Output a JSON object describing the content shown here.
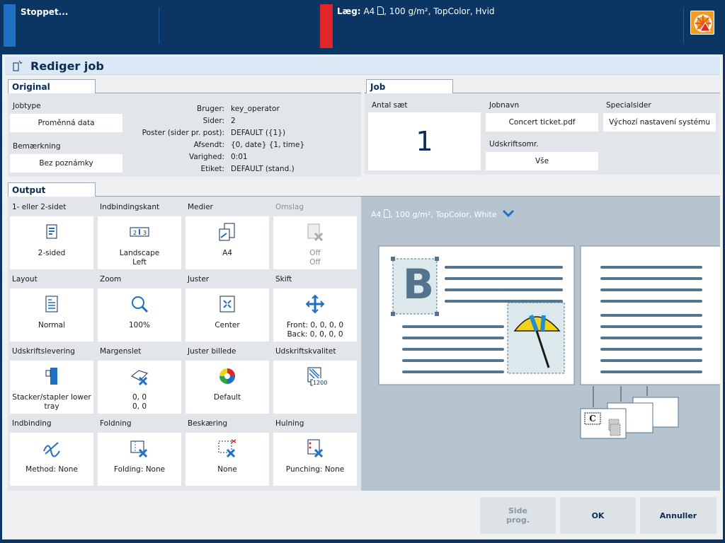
{
  "topbar": {
    "status": "Stoppet...",
    "load_label": "Læg:",
    "load_media": "A4",
    "load_desc": ", 100 g/m², TopColor, Hvid"
  },
  "dialog": {
    "title": "Rediger job",
    "original": {
      "tab": "Original",
      "jobtype_label": "Jobtype",
      "jobtype_value": "Proměnná data",
      "note_label": "Bemærkning",
      "note_value": "Bez poznámky",
      "details": [
        {
          "k": "Bruger:",
          "v": "key_operator"
        },
        {
          "k": "Sider:",
          "v": "2"
        },
        {
          "k": "Poster (sider pr. post):",
          "v": "DEFAULT ({1})"
        },
        {
          "k": "Afsendt:",
          "v": "{0, date} {1, time}"
        },
        {
          "k": "Varighed:",
          "v": "0:01"
        },
        {
          "k": "Etiket:",
          "v": "DEFAULT (stand.)"
        }
      ]
    },
    "job": {
      "tab": "Job",
      "copies_label": "Antal sæt",
      "copies_value": "1",
      "jobname_label": "Jobnavn",
      "jobname_value": "Concert ticket.pdf",
      "special_label": "Specialsider",
      "special_value": "Výchozí nastavení systému",
      "range_label": "Udskriftsomr.",
      "range_value": "Vše"
    },
    "output": {
      "tab": "Output",
      "tiles": [
        {
          "h": "1- eller 2-sidet",
          "t": "2-sided",
          "t2": ""
        },
        {
          "h": "Indbindingskant",
          "t": "Landscape",
          "t2": "Left"
        },
        {
          "h": "Medier",
          "t": "A4",
          "t2": ""
        },
        {
          "h": "Omslag",
          "t": "Off",
          "t2": "Off"
        },
        {
          "h": "Layout",
          "t": "Normal",
          "t2": ""
        },
        {
          "h": "Zoom",
          "t": "100%",
          "t2": ""
        },
        {
          "h": "Juster",
          "t": "Center",
          "t2": ""
        },
        {
          "h": "Skift",
          "t": "Front: 0, 0, 0, 0",
          "t2": "Back: 0, 0, 0, 0"
        },
        {
          "h": "Udskriftslevering",
          "t": "Stacker/stapler lower",
          "t2": "tray"
        },
        {
          "h": "Margenslet",
          "t": "0, 0",
          "t2": "0, 0"
        },
        {
          "h": "Juster billede",
          "t": "Default",
          "t2": ""
        },
        {
          "h": "Udskriftskvalitet",
          "t": "",
          "t2": ""
        },
        {
          "h": "Indbinding",
          "t": "Method: None",
          "t2": ""
        },
        {
          "h": "Foldning",
          "t": "Folding: None",
          "t2": ""
        },
        {
          "h": "Beskæring",
          "t": "None",
          "t2": ""
        },
        {
          "h": "Hulning",
          "t": "Punching: None",
          "t2": ""
        }
      ],
      "quality_badge": "1200",
      "preview_media": "A4",
      "preview_desc": ", 100 g/m², TopColor, White",
      "preview_letter": "B",
      "preview_stack_letter": "C"
    },
    "buttons": {
      "side1": "Side",
      "side2": "prog.",
      "ok": "OK",
      "cancel": "Annuller"
    }
  },
  "colors": {
    "accent": "#0b3562",
    "status_blue": "#1f6fc2",
    "status_red": "#e0252b",
    "preview_bg": "#b6c4d0"
  }
}
